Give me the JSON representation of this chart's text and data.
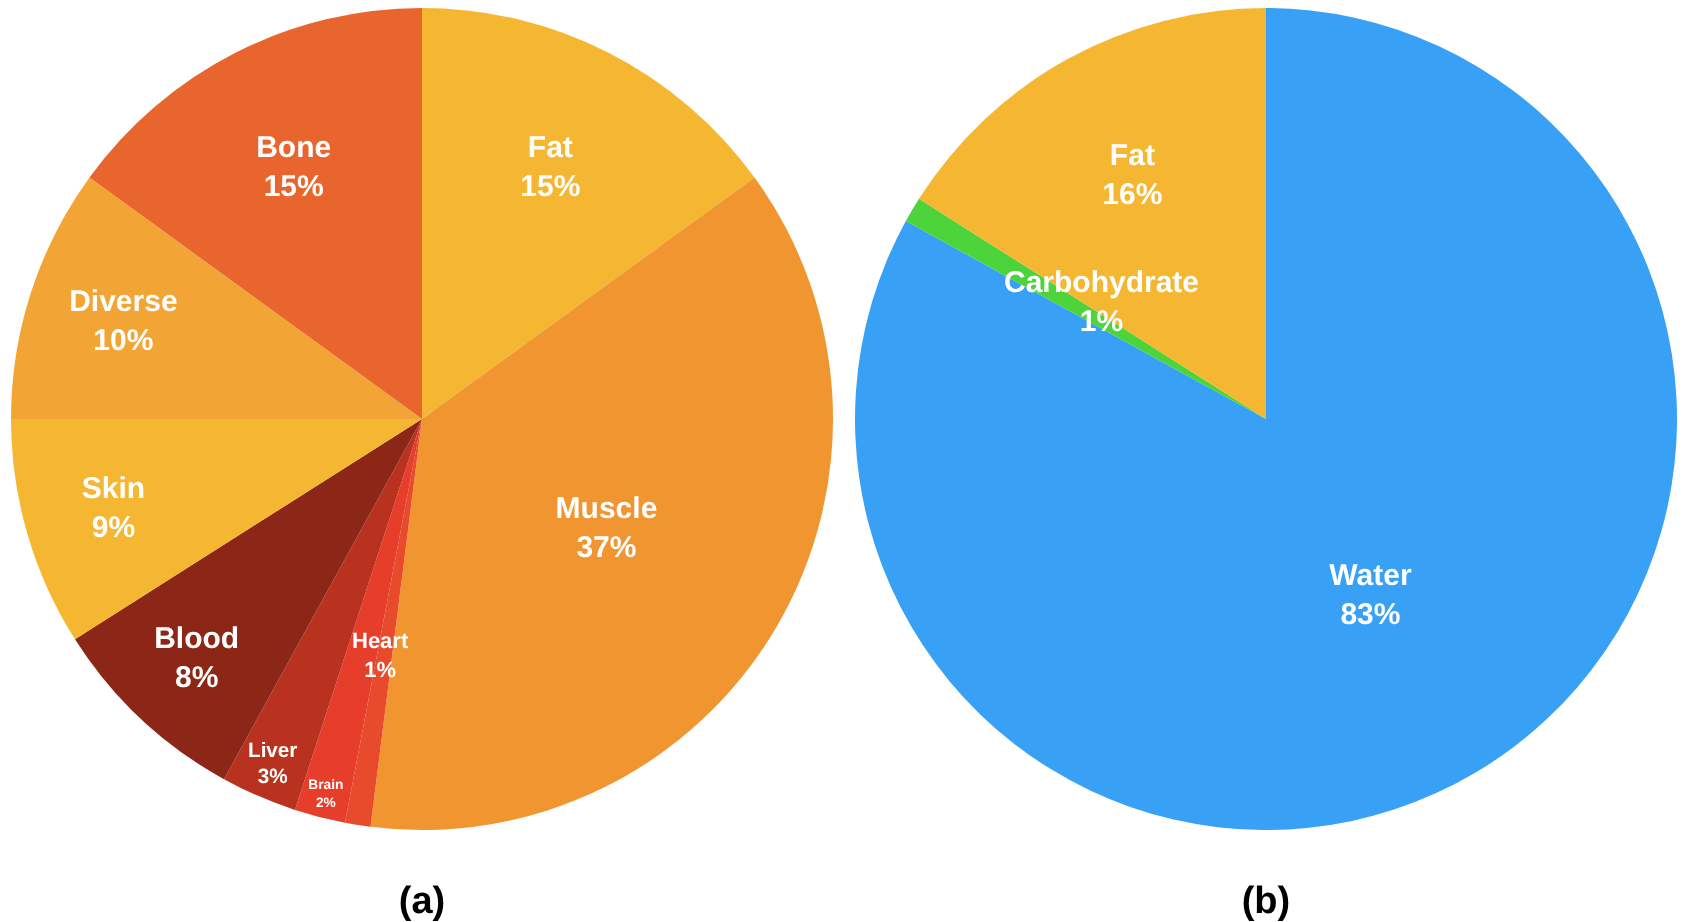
{
  "chart_data": [
    {
      "type": "pie",
      "title": "(a)",
      "categories": [
        "Fat",
        "Muscle",
        "Heart",
        "Brain",
        "Liver",
        "Blood",
        "Skin",
        "Diverse",
        "Bone"
      ],
      "values": [
        15,
        37,
        1,
        2,
        3,
        8,
        9,
        10,
        15
      ],
      "value_labels": [
        "15%",
        "37%",
        "1%",
        "2%",
        "3%",
        "8%",
        "9%",
        "10%",
        "15%"
      ],
      "colors": [
        "#f5b731",
        "#f0952f",
        "#e84a2c",
        "#e63e2a",
        "#b8321f",
        "#8c2616",
        "#f5b731",
        "#f2a534",
        "#e8652e"
      ],
      "legend": false
    },
    {
      "type": "pie",
      "title": "(b)",
      "categories": [
        "Water",
        "Carbohydrate",
        "Fat"
      ],
      "values": [
        83,
        1,
        16
      ],
      "value_labels": [
        "83%",
        "1%",
        "16%"
      ],
      "colors": [
        "#38a0f5",
        "#4cd43a",
        "#f5b731"
      ],
      "legend": false
    }
  ]
}
